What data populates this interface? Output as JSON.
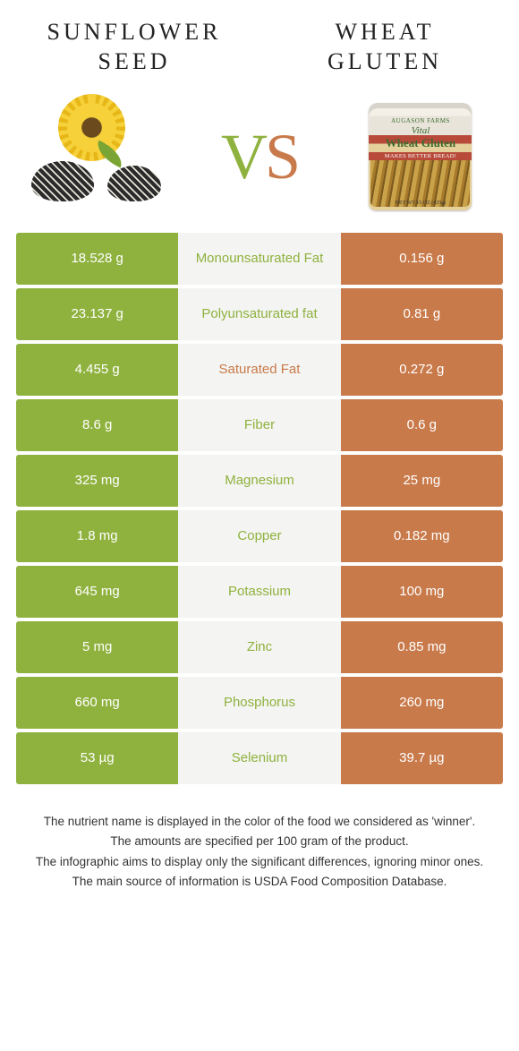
{
  "header": {
    "left_title": "Sunflower seed",
    "right_title": "Wheat gluten"
  },
  "vs": {
    "v": "V",
    "s": "S"
  },
  "can": {
    "brand": "AUGASON FARMS",
    "line1": "Vital",
    "line2": "Wheat Gluten",
    "ribbon": "MAKES BETTER BREAD!",
    "net": "NET WT 15 OZ (425g)"
  },
  "colors": {
    "left_food": "#8fb23e",
    "right_food": "#c97a4a",
    "mid_bg": "#f4f4f2"
  },
  "table": {
    "rows": [
      {
        "left": "18.528 g",
        "label": "Monounsaturated Fat",
        "right": "0.156 g",
        "winner": "left"
      },
      {
        "left": "23.137 g",
        "label": "Polyunsaturated fat",
        "right": "0.81 g",
        "winner": "left"
      },
      {
        "left": "4.455 g",
        "label": "Saturated Fat",
        "right": "0.272 g",
        "winner": "right"
      },
      {
        "left": "8.6 g",
        "label": "Fiber",
        "right": "0.6 g",
        "winner": "left"
      },
      {
        "left": "325 mg",
        "label": "Magnesium",
        "right": "25 mg",
        "winner": "left"
      },
      {
        "left": "1.8 mg",
        "label": "Copper",
        "right": "0.182 mg",
        "winner": "left"
      },
      {
        "left": "645 mg",
        "label": "Potassium",
        "right": "100 mg",
        "winner": "left"
      },
      {
        "left": "5 mg",
        "label": "Zinc",
        "right": "0.85 mg",
        "winner": "left"
      },
      {
        "left": "660 mg",
        "label": "Phosphorus",
        "right": "260 mg",
        "winner": "left"
      },
      {
        "left": "53 µg",
        "label": "Selenium",
        "right": "39.7 µg",
        "winner": "left"
      }
    ]
  },
  "footnotes": [
    "The nutrient name is displayed in the color of the food we considered as 'winner'.",
    "The amounts are specified per 100 gram of the product.",
    "The infographic aims to display only the significant differences, ignoring minor ones.",
    "The main source of information is USDA Food Composition Database."
  ]
}
